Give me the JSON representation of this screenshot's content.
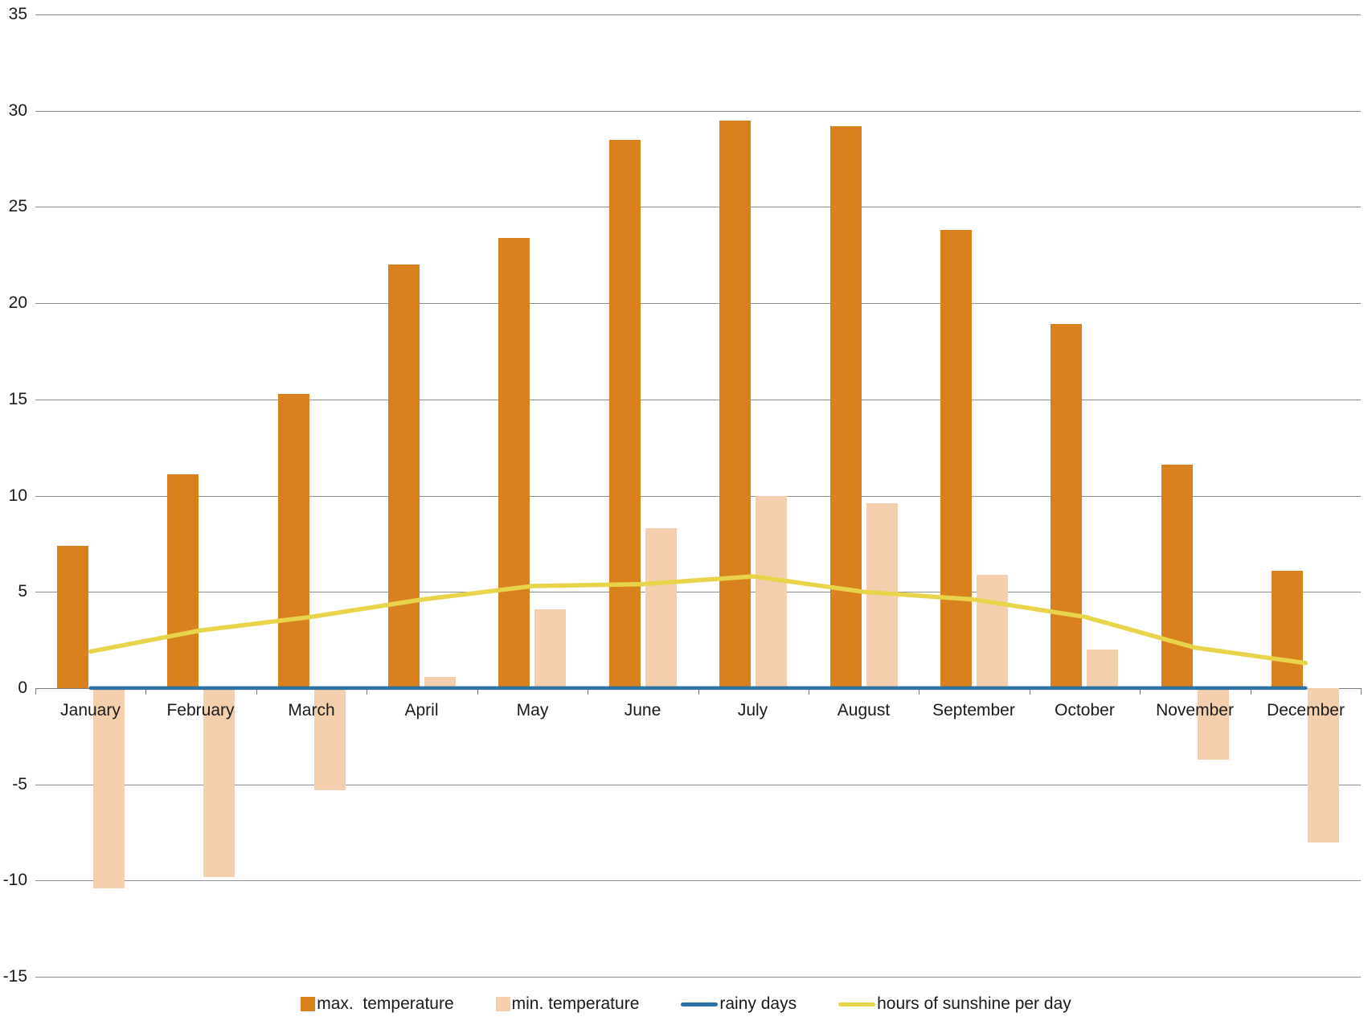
{
  "chart_data": {
    "type": "combo-bar-line",
    "title": "",
    "categories": [
      "January",
      "February",
      "March",
      "April",
      "May",
      "June",
      "July",
      "August",
      "September",
      "October",
      "November",
      "December"
    ],
    "series": [
      {
        "name": "max.  temperature",
        "type": "bar",
        "color": "#d9811f",
        "values": [
          7.4,
          11.1,
          15.3,
          22.0,
          23.4,
          28.5,
          29.5,
          29.2,
          23.8,
          18.9,
          11.6,
          6.1
        ]
      },
      {
        "name": "min. temperature",
        "type": "bar",
        "color": "#f3cfae",
        "values": [
          -10.4,
          -9.8,
          -5.3,
          0.6,
          4.1,
          8.3,
          10.0,
          9.6,
          5.9,
          2.0,
          -3.7,
          -8.0
        ]
      },
      {
        "name": "rainy days",
        "type": "line",
        "color": "#2f73a4",
        "values": [
          0,
          0,
          0,
          0,
          0,
          0,
          0,
          0,
          0,
          0,
          0,
          0
        ]
      },
      {
        "name": "hours of sunshine per day",
        "type": "line",
        "color": "#e7d44b",
        "values": [
          1.9,
          3.0,
          3.7,
          4.6,
          5.3,
          5.4,
          5.8,
          5.0,
          4.6,
          3.7,
          2.1,
          1.3
        ]
      }
    ],
    "y_axis": {
      "min": -15,
      "max": 35,
      "step": 5,
      "tick_labels": [
        "35",
        "30",
        "25",
        "20",
        "15",
        "10",
        "5",
        "0",
        "-5",
        "-10",
        "-15"
      ]
    },
    "x_axis": {
      "label_position": "below-zero-line"
    },
    "grid": true,
    "legend_position": "bottom",
    "style": {
      "gridline_color": "#8f8f8f",
      "text_color": "#1a1a1a",
      "background": "#ffffff"
    }
  }
}
